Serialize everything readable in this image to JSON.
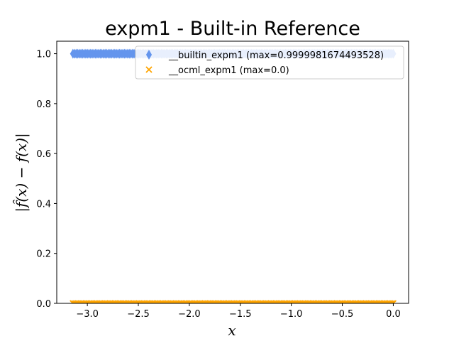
{
  "chart_data": {
    "type": "scatter",
    "title": "expm1 - Built-in Reference",
    "xlabel": "x",
    "ylabel": "|f̂(x) − f(x)|",
    "xlim": [
      -3.3,
      0.15
    ],
    "ylim": [
      0.0,
      1.05
    ],
    "xticks": [
      -3.0,
      -2.5,
      -2.0,
      -1.5,
      -1.0,
      -0.5,
      0.0
    ],
    "xtick_labels": [
      "−3.0",
      "−2.5",
      "−2.0",
      "−1.5",
      "−1.0",
      "−0.5",
      "0.0"
    ],
    "yticks": [
      0.0,
      0.2,
      0.4,
      0.6,
      0.8,
      1.0
    ],
    "ytick_labels": [
      "0.0",
      "0.2",
      "0.4",
      "0.6",
      "0.8",
      "1.0"
    ],
    "legend_position": "top-right",
    "series": [
      {
        "name": "__builtin_expm1 (max=0.9999981674493528)",
        "marker": "thin_diamond",
        "color": "#6495ED",
        "x_range": [
          -3.14159,
          0.0
        ],
        "y_value": 0.99999,
        "point_count": 200
      },
      {
        "name": "__ocml_expm1 (max=0.0)",
        "marker": "x",
        "color": "#FFA500",
        "x_range": [
          -3.14159,
          0.0
        ],
        "y_value": 0.0,
        "point_count": 200
      }
    ]
  }
}
